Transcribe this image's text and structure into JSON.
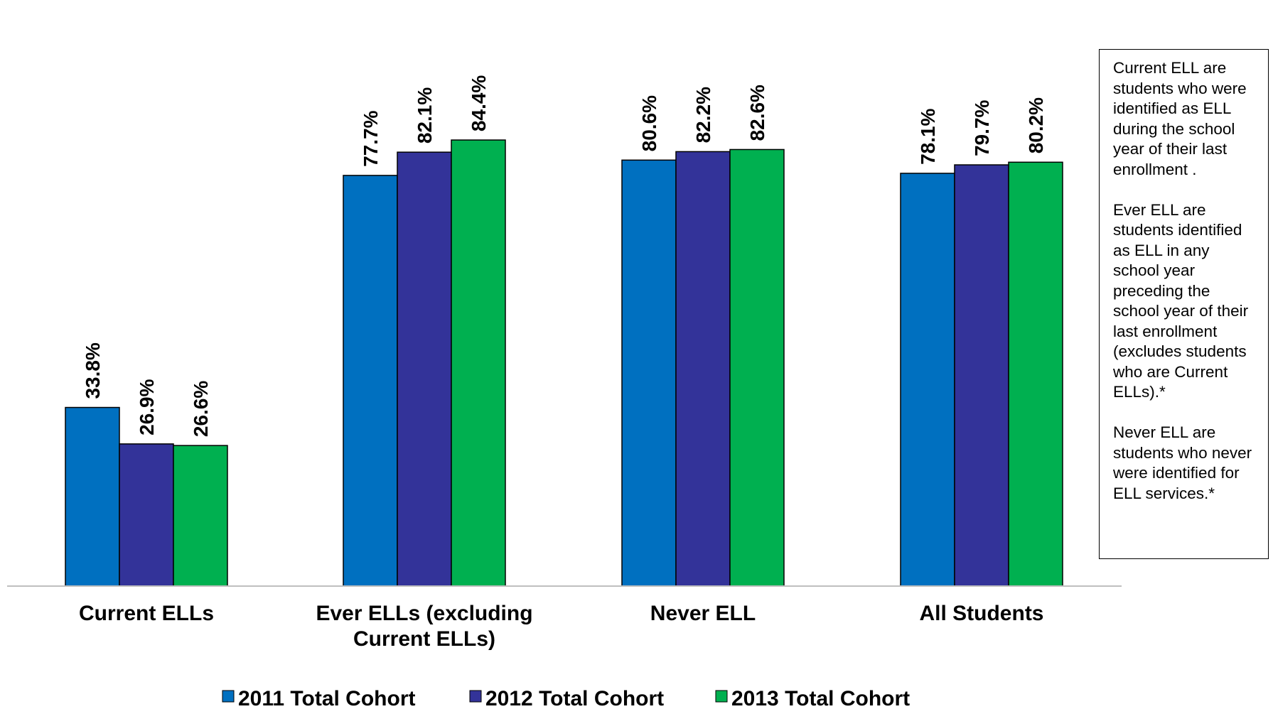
{
  "chart_data": {
    "type": "bar",
    "categories": [
      "Current ELLs",
      "Ever ELLs (excluding Current ELLs)",
      "Never ELL",
      "All Students"
    ],
    "category_lines": [
      [
        "Current ELLs"
      ],
      [
        "Ever ELLs (excluding",
        "Current ELLs)"
      ],
      [
        "Never ELL"
      ],
      [
        "All Students"
      ]
    ],
    "series": [
      {
        "name": "2011 Total Cohort",
        "color": "#0070C0",
        "values": [
          33.8,
          77.7,
          80.6,
          78.1
        ],
        "labels": [
          "33.8%",
          "77.7%",
          "80.6%",
          "78.1%"
        ]
      },
      {
        "name": "2012 Total Cohort",
        "color": "#333399",
        "values": [
          26.9,
          82.1,
          82.2,
          79.7
        ],
        "labels": [
          "26.9%",
          "82.1%",
          "82.2%",
          "79.7%"
        ]
      },
      {
        "name": "2013 Total Cohort",
        "color": "#00B050",
        "values": [
          26.6,
          84.4,
          82.6,
          80.2
        ],
        "labels": [
          "26.6%",
          "84.4%",
          "82.6%",
          "80.2%"
        ]
      }
    ],
    "title": "",
    "xlabel": "",
    "ylabel": "",
    "ylim": [
      0,
      100
    ],
    "grid": false,
    "legend_position": "bottom"
  },
  "note": {
    "paragraphs": [
      "Current ELL are students who were identified as ELL during the school year of their last enrollment .",
      "Ever ELL are students identified as ELL in any school year preceding the school year of their last enrollment (excludes students who are Current ELLs).*",
      "Never ELL are students who never were identified for ELL services.*"
    ]
  }
}
